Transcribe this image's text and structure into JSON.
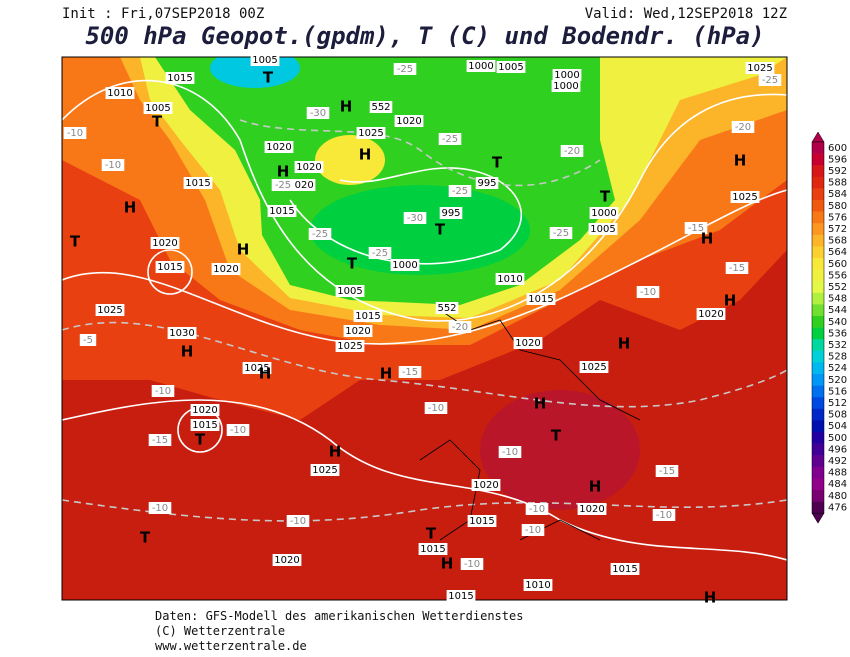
{
  "header": {
    "init": "Init : Fri,07SEP2018 00Z",
    "valid": "Valid: Wed,12SEP2018 12Z",
    "title": "500 hPa Geopot.(gpdm), T (C) und Bodendr. (hPa)"
  },
  "footer": [
    "Daten: GFS-Modell des amerikanischen Wetterdienstes",
    "(C) Wetterzentrale",
    "www.wetterzentrale.de"
  ],
  "colorbar": {
    "levels": [
      600,
      596,
      592,
      588,
      584,
      580,
      576,
      572,
      568,
      564,
      560,
      556,
      552,
      548,
      544,
      540,
      536,
      532,
      528,
      524,
      520,
      516,
      512,
      508,
      504,
      500,
      496,
      492,
      488,
      484,
      480,
      476
    ],
    "colors": [
      "#b0004a",
      "#c80030",
      "#d81818",
      "#e02810",
      "#e84010",
      "#f05a10",
      "#f87818",
      "#fc9620",
      "#fcb428",
      "#fcd030",
      "#f8e838",
      "#f0f040",
      "#e4f848",
      "#b0f040",
      "#70e030",
      "#30d020",
      "#00d040",
      "#00d8a0",
      "#00d0d8",
      "#00b8f0",
      "#0098f8",
      "#0070f0",
      "#0048e0",
      "#0028c8",
      "#0010b0",
      "#2000a0",
      "#400098",
      "#600090",
      "#800090",
      "#900088",
      "#780070",
      "#500050"
    ]
  },
  "map": {
    "labels": [
      "1015",
      "1010",
      "1005",
      "T",
      "-10",
      "-10",
      "1015",
      "H",
      "T",
      "1020",
      "H",
      "1015",
      "1020",
      "1025",
      "-5",
      "1030",
      "H",
      "-10",
      "1020",
      "1015",
      "T",
      "-10",
      "-15",
      "1025",
      "H",
      "-10",
      "T",
      "-10",
      "1020",
      "1025",
      "H",
      "H",
      "-15",
      "1015",
      "1020",
      "1025",
      "-10",
      "-20",
      "552",
      "1005",
      "T",
      "1000",
      "-25",
      "-30",
      "995",
      "T",
      "-25",
      "995",
      "T",
      "-25",
      "1020",
      "1025",
      "H",
      "H",
      "-30",
      "552",
      "-25",
      "1005",
      "T",
      "1020",
      "H",
      "1020",
      "1020",
      "-25",
      "1015",
      "-25",
      "1000",
      "1005",
      "1000",
      "1000",
      "-20",
      "T",
      "1000",
      "1005",
      "-25",
      "1010",
      "1015",
      "1020",
      "H",
      "1025",
      "H",
      "T",
      "-10",
      "1020",
      "H",
      "1020",
      "-10",
      "1015",
      "-10",
      "T",
      "1015",
      "H",
      "-10",
      "1010",
      "1015",
      "1015",
      "-15",
      "-10",
      "1025",
      "-25",
      "-20",
      "H",
      "1025",
      "-15",
      "H",
      "-15",
      "-10",
      "H",
      "1020",
      "H"
    ]
  }
}
